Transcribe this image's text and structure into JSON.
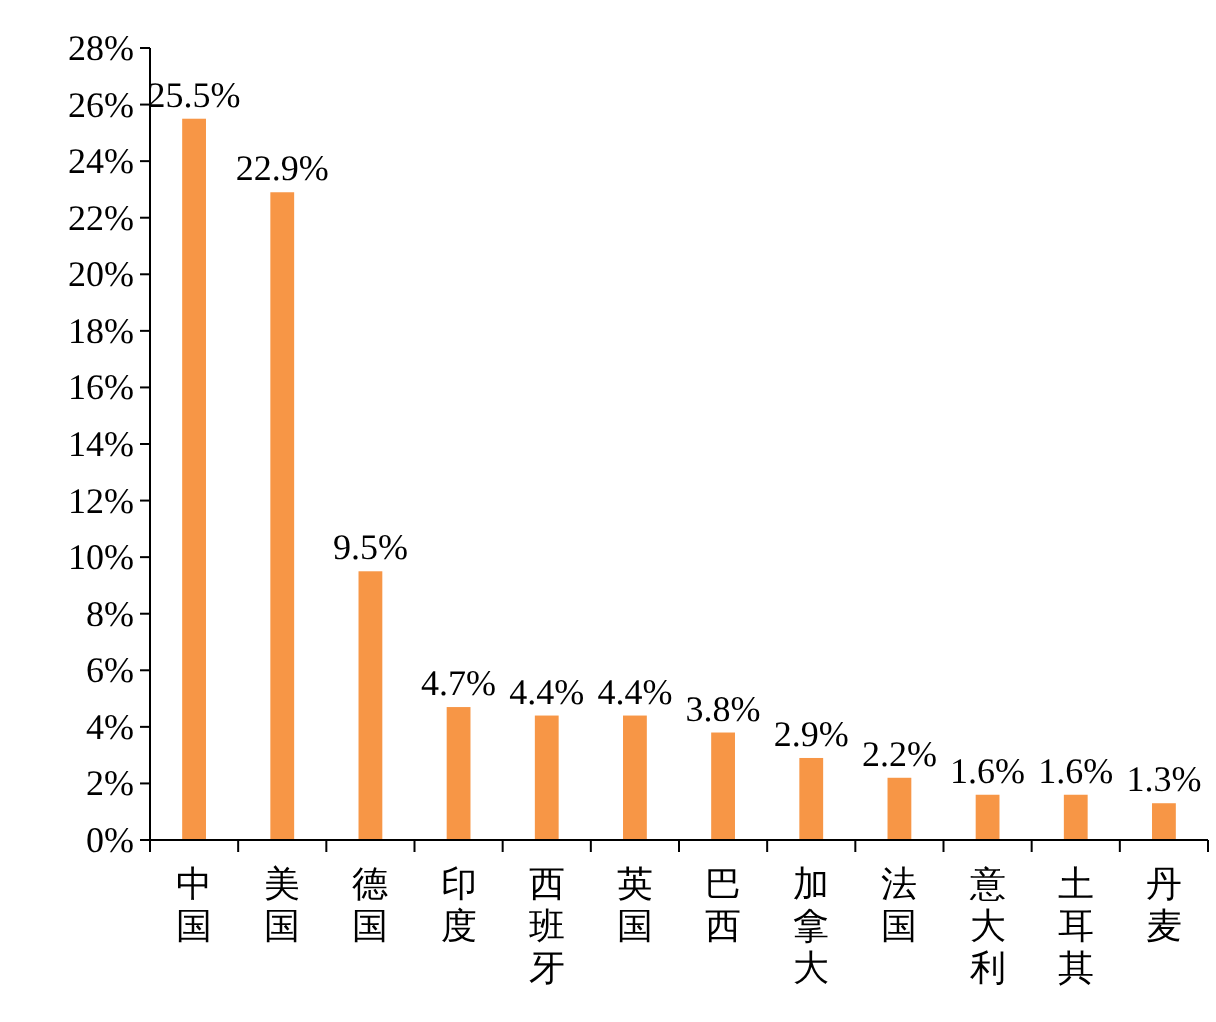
{
  "chart_data": {
    "type": "bar",
    "categories": [
      "中国",
      "美国",
      "德国",
      "印度",
      "西班牙",
      "英国",
      "巴西",
      "加拿大",
      "法国",
      "意大利",
      "土耳其",
      "丹麦"
    ],
    "values": [
      25.5,
      22.9,
      9.5,
      4.7,
      4.4,
      4.4,
      3.8,
      2.9,
      2.2,
      1.6,
      1.6,
      1.3
    ],
    "value_labels": [
      "25.5%",
      "22.9%",
      "9.5%",
      "4.7%",
      "4.4%",
      "4.4%",
      "3.8%",
      "2.9%",
      "2.2%",
      "1.6%",
      "1.6%",
      "1.3%"
    ],
    "color": "#f79646",
    "ylim": [
      0,
      28
    ],
    "yticks": [
      {
        "value": 0,
        "label": "0%"
      },
      {
        "value": 2,
        "label": "2%"
      },
      {
        "value": 4,
        "label": "4%"
      },
      {
        "value": 6,
        "label": "6%"
      },
      {
        "value": 8,
        "label": "8%"
      },
      {
        "value": 10,
        "label": "10%"
      },
      {
        "value": 12,
        "label": "12%"
      },
      {
        "value": 14,
        "label": "14%"
      },
      {
        "value": 16,
        "label": "16%"
      },
      {
        "value": 18,
        "label": "18%"
      },
      {
        "value": 20,
        "label": "20%"
      },
      {
        "value": 22,
        "label": "22%"
      },
      {
        "value": 24,
        "label": "24%"
      },
      {
        "value": 26,
        "label": "26%"
      },
      {
        "value": 28,
        "label": "28%"
      }
    ],
    "grid": false
  }
}
